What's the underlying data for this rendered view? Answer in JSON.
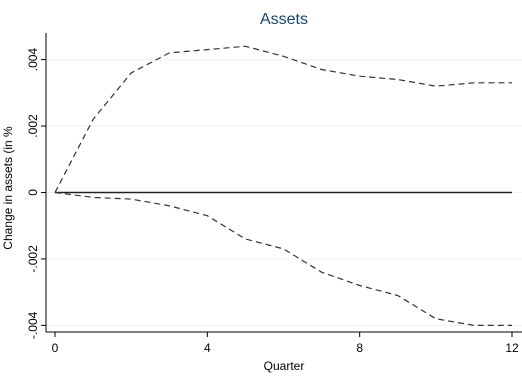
{
  "chart_data": {
    "type": "line",
    "title": "Assets",
    "xlabel": "Quarter",
    "ylabel": "Change in assets (in %",
    "xlim": [
      0,
      12
    ],
    "ylim": [
      -0.0042,
      0.0048
    ],
    "x_ticks": [
      0,
      4,
      8,
      12
    ],
    "x_tick_labels": [
      "0",
      "4",
      "8",
      "12"
    ],
    "y_ticks": [
      -0.004,
      -0.002,
      0,
      0.002,
      0.004
    ],
    "y_tick_labels": [
      "-.004",
      "-.002",
      "0",
      ".002",
      ".004"
    ],
    "grid": true,
    "x": [
      0,
      1,
      2,
      3,
      4,
      5,
      6,
      7,
      8,
      9,
      10,
      11,
      12
    ],
    "series": [
      {
        "values": [
          0.0,
          0.0022,
          0.0036,
          0.0042,
          0.0043,
          0.0044,
          0.0041,
          0.0037,
          0.0035,
          0.0034,
          0.0032,
          0.0033,
          0.0033
        ],
        "style": "dashed"
      },
      {
        "values": [
          0.0,
          0.0,
          0.0,
          0.0,
          0.0,
          0.0,
          0.0,
          0.0,
          0.0,
          0.0,
          0.0,
          0.0,
          0.0
        ],
        "style": "solid"
      },
      {
        "values": [
          0.0,
          -0.00015,
          -0.0002,
          -0.0004,
          -0.0007,
          -0.0014,
          -0.0017,
          -0.0024,
          -0.0028,
          -0.0031,
          -0.0038,
          -0.004,
          -0.004
        ],
        "style": "dashed"
      }
    ],
    "colors": {
      "title": "#1a476f",
      "line": "#333333",
      "grid": "#eaf2f3",
      "frame": "#000000"
    }
  }
}
